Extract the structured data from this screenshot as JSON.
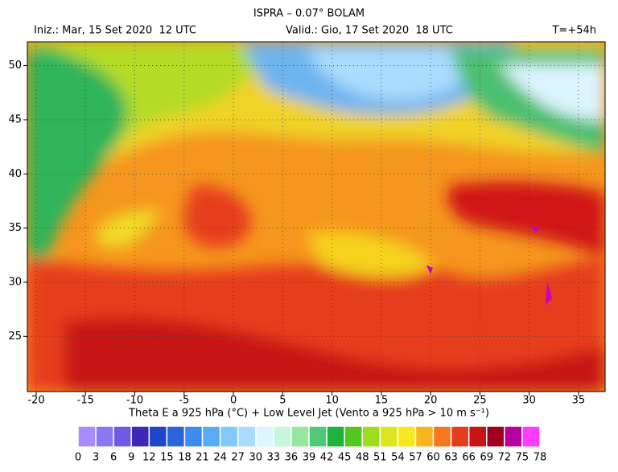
{
  "header": {
    "title": "ISPRA – 0.07° BOLAM",
    "init": "Iniz.: Mar, 15 Set 2020  12 UTC",
    "valid": "Valid.: Gio, 17 Set 2020  18 UTC",
    "lead": "T=+54h"
  },
  "map": {
    "xlim": [
      -20.9,
      37.7
    ],
    "ylim": [
      19.9,
      52.2
    ],
    "xticks": [
      -20,
      -15,
      -10,
      -5,
      0,
      5,
      10,
      15,
      20,
      25,
      30,
      35
    ],
    "yticks": [
      25,
      30,
      35,
      40,
      45,
      50
    ]
  },
  "caption": "Theta E a 925 hPa (°C) + Low Level Jet (Vento a 925 hPa > 10 m s⁻¹)",
  "colorbar": {
    "labels": [
      0,
      3,
      6,
      9,
      12,
      15,
      18,
      21,
      24,
      27,
      30,
      33,
      36,
      39,
      42,
      45,
      48,
      51,
      54,
      57,
      60,
      63,
      66,
      69,
      72,
      75,
      78
    ],
    "colors": [
      "#a58cff",
      "#8c78f5",
      "#6e5ae6",
      "#3c28b4",
      "#1e46c8",
      "#2864dc",
      "#3c8cf0",
      "#5aaaf5",
      "#82c8fa",
      "#aadcff",
      "#dcf5ff",
      "#c8f5dc",
      "#96e6a0",
      "#50c878",
      "#1eb43c",
      "#50c81e",
      "#a0dc1e",
      "#dce61e",
      "#fae61e",
      "#fab41e",
      "#f5781e",
      "#e63c1e",
      "#c81414",
      "#a0001e",
      "#b4009c",
      "#ff3cff"
    ]
  }
}
